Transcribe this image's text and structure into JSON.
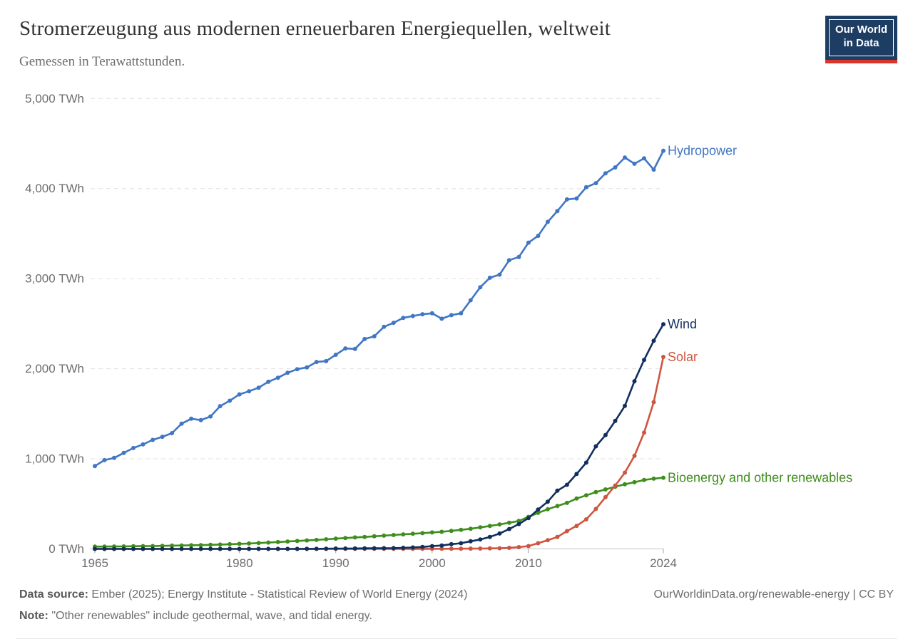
{
  "header": {
    "title": "Stromerzeugung aus modernen erneuerbaren Energiequellen, weltweit",
    "subtitle": "Gemessen in Terawattstunden.",
    "logo_line1": "Our World",
    "logo_line2": "in Data"
  },
  "footer": {
    "source_label": "Data source:",
    "source_text": "Ember (2025); Energy Institute - Statistical Review of World Energy (2024)",
    "attribution": "OurWorldinData.org/renewable-energy | CC BY",
    "note_label": "Note:",
    "note_text": "\"Other renewables\" include geothermal, wave, and tidal energy."
  },
  "colors": {
    "grid": "#e0e0e0",
    "axis": "#c4c4c4",
    "tick": "#a0a0a0",
    "tick_label": "#6e6e6e",
    "logo_bg": "#1d3d63",
    "logo_red": "#d8352c"
  },
  "chart_data": {
    "type": "line",
    "title": "Stromerzeugung aus modernen erneuerbaren Energiequellen, weltweit",
    "subtitle": "Gemessen in Terawattstunden.",
    "xlabel": "",
    "ylabel": "TWh",
    "xlim": [
      1965,
      2024
    ],
    "ylim": [
      0,
      5000
    ],
    "grid": "dashed horizontal",
    "legend_position": "line-end labels, right of plot",
    "x_start_year": 1965,
    "x_ticks": [
      {
        "v": 1965,
        "label": "1965"
      },
      {
        "v": 1980,
        "label": "1980"
      },
      {
        "v": 1990,
        "label": "1990"
      },
      {
        "v": 2000,
        "label": "2000"
      },
      {
        "v": 2010,
        "label": "2010"
      },
      {
        "v": 2024,
        "label": "2024"
      }
    ],
    "y_ticks": [
      {
        "v": 0,
        "label": "0 TWh"
      },
      {
        "v": 1000,
        "label": "1,000 TWh"
      },
      {
        "v": 2000,
        "label": "2,000 TWh"
      },
      {
        "v": 3000,
        "label": "3,000 TWh"
      },
      {
        "v": 4000,
        "label": "4,000 TWh"
      },
      {
        "v": 5000,
        "label": "5,000 TWh"
      }
    ],
    "series": [
      {
        "name": "hydropower",
        "label": "Hydropower",
        "color": "#4076c4",
        "values": [
          920,
          985,
          1010,
          1065,
          1120,
          1160,
          1210,
          1245,
          1285,
          1390,
          1445,
          1430,
          1470,
          1585,
          1645,
          1715,
          1750,
          1790,
          1855,
          1900,
          1955,
          1995,
          2015,
          2075,
          2085,
          2155,
          2225,
          2220,
          2330,
          2360,
          2465,
          2510,
          2565,
          2585,
          2605,
          2615,
          2555,
          2595,
          2615,
          2760,
          2905,
          3010,
          3045,
          3205,
          3240,
          3400,
          3475,
          3630,
          3750,
          3880,
          3890,
          4015,
          4060,
          4170,
          4235,
          4345,
          4275,
          4335,
          4210,
          4420
        ]
      },
      {
        "name": "bioenergy-other-renewables",
        "label": "Bioenergy and other renewables",
        "color": "#3f8e1d",
        "values": [
          25,
          26,
          27,
          28,
          30,
          31,
          32,
          34,
          36,
          38,
          40,
          42,
          45,
          48,
          52,
          56,
          60,
          65,
          70,
          76,
          82,
          88,
          94,
          100,
          107,
          114,
          120,
          127,
          133,
          140,
          147,
          154,
          161,
          168,
          175,
          183,
          190,
          200,
          211,
          224,
          239,
          255,
          272,
          290,
          310,
          356,
          400,
          440,
          477,
          511,
          559,
          595,
          630,
          660,
          690,
          717,
          740,
          765,
          780,
          790
        ]
      },
      {
        "name": "solar",
        "label": "Solar",
        "color": "#ce5640",
        "values": [
          0,
          0,
          0,
          0,
          0,
          0,
          0,
          0,
          0,
          0,
          0,
          0,
          0,
          0,
          0,
          0,
          0,
          0,
          0,
          0,
          0,
          0,
          0,
          0,
          0,
          0.4,
          0.5,
          0.5,
          0.6,
          0.6,
          0.7,
          0.7,
          0.8,
          0.9,
          1,
          1.1,
          1.4,
          1.7,
          2.1,
          2.8,
          4,
          5.4,
          7.4,
          11.9,
          19.8,
          32,
          63,
          97,
          132,
          198,
          256,
          328,
          444,
          574,
          703,
          846,
          1033,
          1291,
          1629,
          2131
        ]
      },
      {
        "name": "wind",
        "label": "Wind",
        "color": "#112f5e",
        "values": [
          0,
          0,
          0,
          0,
          0,
          0,
          0,
          0,
          0,
          0,
          0,
          0,
          0,
          0,
          0,
          0,
          0,
          0,
          0,
          0,
          0.1,
          0.2,
          0.4,
          0.8,
          2,
          4,
          4,
          5,
          6,
          7,
          8,
          9,
          12,
          16,
          21,
          31,
          38,
          52,
          63,
          85,
          104,
          133,
          171,
          221,
          276,
          342,
          437,
          524,
          646,
          712,
          832,
          958,
          1139,
          1263,
          1420,
          1587,
          1862,
          2098,
          2310,
          2494
        ]
      }
    ]
  }
}
